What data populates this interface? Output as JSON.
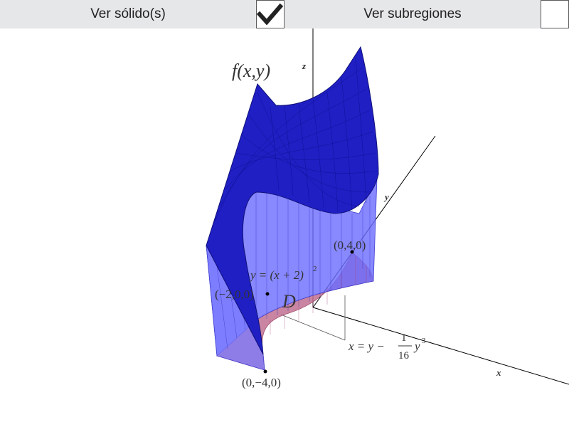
{
  "toolbar": {
    "solid_label": "Ver sólido(s)",
    "solid_checked": true,
    "subregions_label": "Ver subregiones",
    "subregions_checked": false
  },
  "scene": {
    "function_label": "f(x,y)",
    "axis_z": "z",
    "axis_y": "y",
    "axis_x": "x",
    "region_label": "D",
    "point_top": "(0,4,0)",
    "point_left": "(−2,0,0)",
    "point_bottom": "(0,−4,0)",
    "curve_left": {
      "lhs": "y = (x + 2)",
      "exp": "2"
    },
    "curve_right": {
      "lhs": "x = y −",
      "num": "1",
      "den": "16",
      "var": "y",
      "exp": "3"
    },
    "colors": {
      "surface": "#1f1fc4",
      "walls": "#6a6aff",
      "region": "#c07090",
      "axes": "#000000"
    }
  }
}
